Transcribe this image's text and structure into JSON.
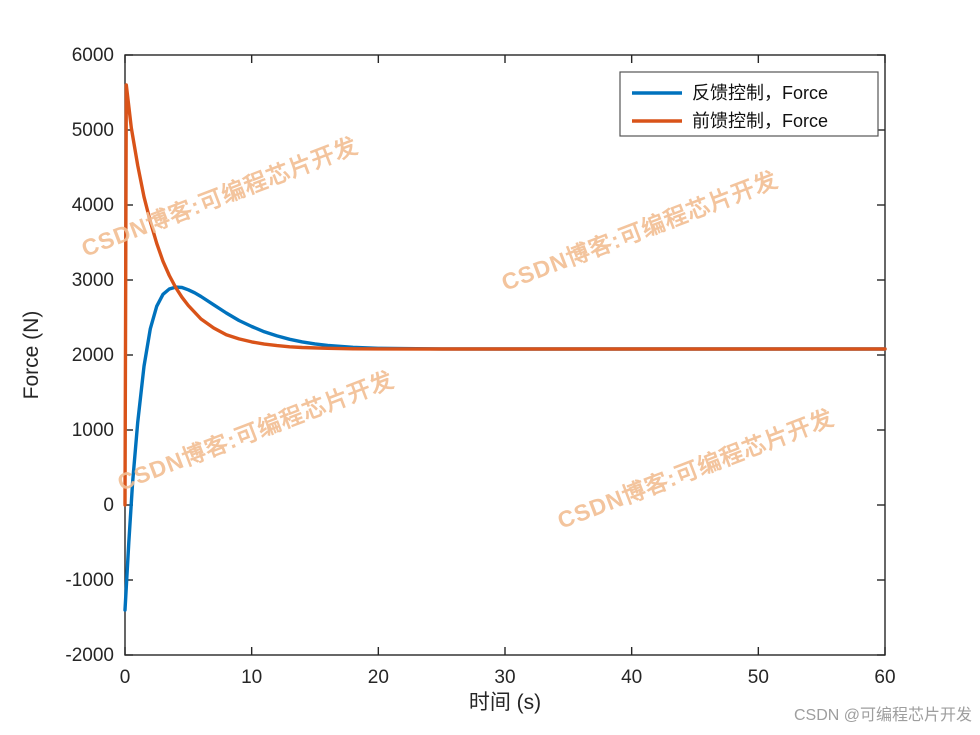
{
  "chart_data": {
    "type": "line",
    "title": "",
    "xlabel": "时间 (s)",
    "ylabel": "Force (N)",
    "xlim": [
      0,
      60
    ],
    "ylim": [
      -2000,
      6000
    ],
    "xticks": [
      0,
      10,
      20,
      30,
      40,
      50,
      60
    ],
    "yticks": [
      -2000,
      -1000,
      0,
      1000,
      2000,
      3000,
      4000,
      5000,
      6000
    ],
    "grid": false,
    "legend_position": "top-right",
    "series": [
      {
        "name": "反馈控制，Force",
        "color": "#0072BD",
        "x": [
          0,
          0.3,
          0.6,
          1,
          1.5,
          2,
          2.5,
          3,
          3.5,
          4,
          4.5,
          5,
          5.5,
          6,
          7,
          8,
          9,
          10,
          11,
          12,
          13,
          14,
          15,
          16,
          18,
          20,
          22,
          25,
          30,
          40,
          50,
          60
        ],
        "y": [
          -1400,
          -500,
          300,
          1100,
          1850,
          2350,
          2650,
          2810,
          2880,
          2905,
          2900,
          2870,
          2830,
          2780,
          2670,
          2560,
          2460,
          2380,
          2310,
          2255,
          2210,
          2175,
          2148,
          2128,
          2102,
          2090,
          2085,
          2081,
          2080,
          2080,
          2080,
          2080
        ]
      },
      {
        "name": "前馈控制，Force",
        "color": "#D95319",
        "x": [
          0,
          0.1,
          0.5,
          1,
          1.5,
          2,
          2.5,
          3,
          3.5,
          4,
          4.5,
          5,
          6,
          7,
          8,
          9,
          10,
          11,
          12,
          13,
          14,
          16,
          18,
          20,
          25,
          30,
          40,
          50,
          60
        ],
        "y": [
          0,
          5600,
          5030,
          4530,
          4110,
          3780,
          3490,
          3250,
          3060,
          2900,
          2770,
          2660,
          2480,
          2360,
          2270,
          2215,
          2175,
          2145,
          2125,
          2110,
          2100,
          2090,
          2083,
          2081,
          2080,
          2080,
          2080,
          2080,
          2080
        ]
      }
    ],
    "settled_value": 2080
  },
  "watermarks": {
    "tiled_text": "CSDN博客:可编程芯片开发",
    "color": "#F2BE93",
    "credit": "CSDN @可编程芯片开发",
    "credit_color": "#9E9E9E"
  }
}
